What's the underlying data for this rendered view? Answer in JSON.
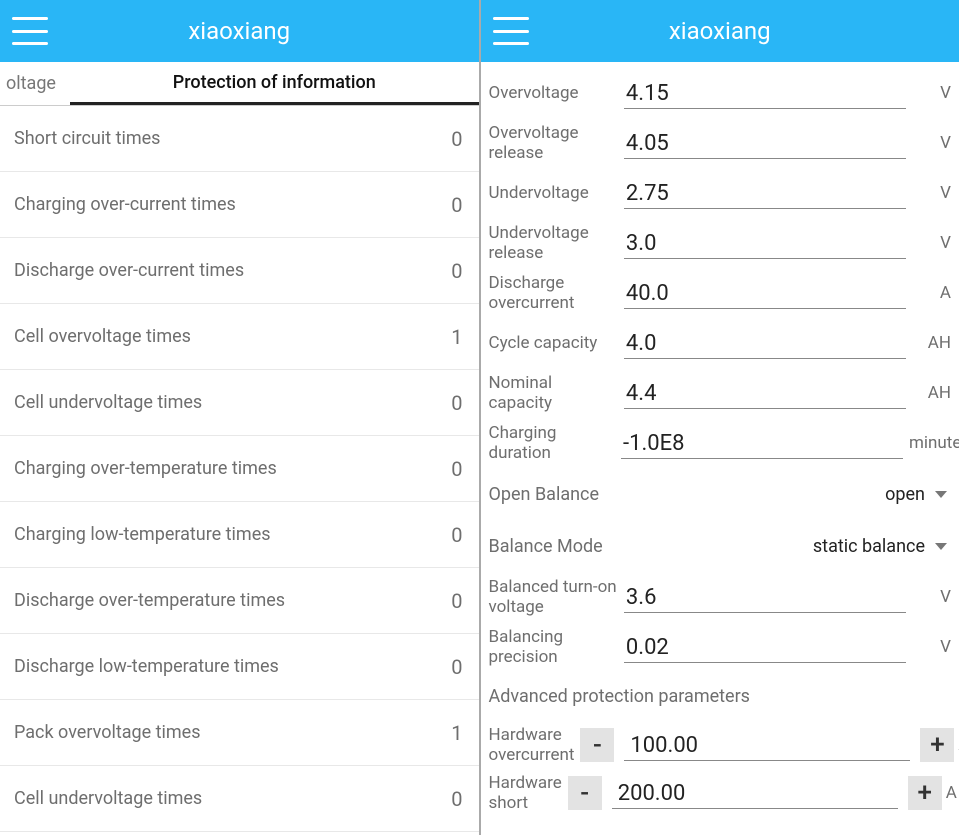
{
  "colors": {
    "header_bg": "#29b6f6",
    "header_fg": "#ffffff",
    "text_muted": "#6e6e6e",
    "text_primary": "#222222",
    "divider": "#e8e8e8",
    "underline": "#888888",
    "tab_active_border": "#222222",
    "stepper_btn_bg": "#e3e3e3"
  },
  "left": {
    "header_title": "xiaoxiang",
    "tabs": {
      "partial_prev": "oltage",
      "active": "Protection of information"
    },
    "rows": [
      {
        "label": "Short circuit times",
        "value": "0"
      },
      {
        "label": "Charging over-current times",
        "value": "0"
      },
      {
        "label": "Discharge over-current times",
        "value": "0"
      },
      {
        "label": "Cell overvoltage times",
        "value": "1"
      },
      {
        "label": "Cell undervoltage times",
        "value": "0"
      },
      {
        "label": "Charging over-temperature times",
        "value": "0"
      },
      {
        "label": "Charging low-temperature times",
        "value": "0"
      },
      {
        "label": "Discharge over-temperature times",
        "value": "0"
      },
      {
        "label": "Discharge low-temperature times",
        "value": "0"
      },
      {
        "label": "Pack overvoltage times",
        "value": "1"
      },
      {
        "label": "Cell undervoltage times",
        "value": "0"
      }
    ]
  },
  "right": {
    "header_title": "xiaoxiang",
    "params": [
      {
        "label": "Overvoltage",
        "value": "4.15",
        "unit": "V"
      },
      {
        "label": "Overvoltage release",
        "value": "4.05",
        "unit": "V"
      },
      {
        "label": "Undervoltage",
        "value": "2.75",
        "unit": "V"
      },
      {
        "label": "Undervoltage release",
        "value": "3.0",
        "unit": "V"
      },
      {
        "label": "Discharge overcurrent",
        "value": "40.0",
        "unit": "A"
      },
      {
        "label": "Cycle capacity",
        "value": "4.0",
        "unit": "AH"
      },
      {
        "label": "Nominal capacity",
        "value": "4.4",
        "unit": "AH"
      },
      {
        "label": "Charging duration",
        "value": "-1.0E8",
        "unit": "minute"
      }
    ],
    "open_balance": {
      "label": "Open Balance",
      "value": "open"
    },
    "balance_mode": {
      "label": "Balance Mode",
      "value": "static balance"
    },
    "balanced_turn_on": {
      "label": "Balanced turn-on voltage",
      "value": "3.6",
      "unit": "V"
    },
    "balancing_precision": {
      "label": "Balancing precision",
      "value": "0.02",
      "unit": "V"
    },
    "advanced_section_title": "Advanced protection parameters",
    "hw_overcurrent": {
      "label": "Hardware overcurrent",
      "value": "100.00",
      "unit": "A"
    },
    "hw_short": {
      "label": "Hardware short",
      "value": "200.00",
      "unit": "A"
    }
  }
}
